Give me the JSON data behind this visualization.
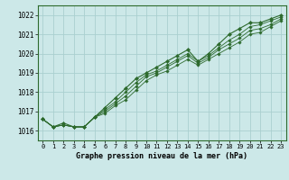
{
  "xlabel": "Graphe pression niveau de la mer (hPa)",
  "bg_color": "#cce8e8",
  "grid_color": "#aacfcf",
  "line_color": "#2d6a2d",
  "x_values": [
    0,
    1,
    2,
    3,
    4,
    5,
    6,
    7,
    8,
    9,
    10,
    11,
    12,
    13,
    14,
    15,
    16,
    17,
    18,
    19,
    20,
    21,
    22,
    23
  ],
  "series": [
    [
      1016.6,
      1016.2,
      1016.4,
      1016.2,
      1016.2,
      1016.7,
      1017.2,
      1017.7,
      1018.2,
      1018.7,
      1019.0,
      1019.3,
      1019.6,
      1019.9,
      1020.2,
      1019.6,
      1020.0,
      1020.5,
      1021.0,
      1021.3,
      1021.6,
      1021.6,
      1021.8,
      1022.0
    ],
    [
      1016.6,
      1016.2,
      1016.3,
      1016.2,
      1016.2,
      1016.7,
      1017.1,
      1017.5,
      1018.0,
      1018.5,
      1018.9,
      1019.1,
      1019.4,
      1019.7,
      1020.0,
      1019.6,
      1019.9,
      1020.3,
      1020.7,
      1021.0,
      1021.4,
      1021.5,
      1021.7,
      1021.9
    ],
    [
      1016.6,
      1016.2,
      1016.3,
      1016.2,
      1016.2,
      1016.7,
      1017.0,
      1017.4,
      1017.8,
      1018.3,
      1018.8,
      1019.0,
      1019.3,
      1019.6,
      1019.9,
      1019.5,
      1019.8,
      1020.2,
      1020.5,
      1020.8,
      1021.2,
      1021.3,
      1021.5,
      1021.8
    ],
    [
      1016.6,
      1016.2,
      1016.3,
      1016.2,
      1016.2,
      1016.7,
      1016.9,
      1017.3,
      1017.6,
      1018.1,
      1018.6,
      1018.9,
      1019.1,
      1019.4,
      1019.7,
      1019.4,
      1019.7,
      1020.0,
      1020.3,
      1020.6,
      1021.0,
      1021.1,
      1021.4,
      1021.7
    ]
  ],
  "ylim": [
    1015.5,
    1022.5
  ],
  "xlim": [
    -0.5,
    23.5
  ],
  "yticks": [
    1016,
    1017,
    1018,
    1019,
    1020,
    1021,
    1022
  ],
  "xticks": [
    0,
    1,
    2,
    3,
    4,
    5,
    6,
    7,
    8,
    9,
    10,
    11,
    12,
    13,
    14,
    15,
    16,
    17,
    18,
    19,
    20,
    21,
    22,
    23
  ],
  "xlabel_fontsize": 6.0,
  "ytick_fontsize": 5.5,
  "xtick_fontsize": 5.0
}
